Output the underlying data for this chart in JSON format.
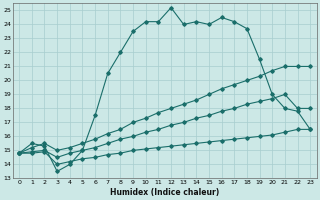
{
  "xlabel": "Humidex (Indice chaleur)",
  "bg_color": "#cce8e6",
  "grid_color": "#a8cece",
  "line_color": "#1a6e6a",
  "xlim": [
    -0.5,
    23.5
  ],
  "ylim": [
    13,
    25.5
  ],
  "xticks": [
    0,
    1,
    2,
    3,
    4,
    5,
    6,
    7,
    8,
    9,
    10,
    11,
    12,
    13,
    14,
    15,
    16,
    17,
    18,
    19,
    20,
    21,
    22,
    23
  ],
  "yticks": [
    13,
    14,
    15,
    16,
    17,
    18,
    19,
    20,
    21,
    22,
    23,
    24,
    25
  ],
  "curve1_x": [
    0,
    1,
    2,
    3,
    4,
    5,
    6,
    7,
    8,
    9,
    10,
    11,
    12,
    13,
    14,
    15,
    16,
    17,
    18,
    19,
    20,
    21,
    22,
    23
  ],
  "curve1_y": [
    14.8,
    15.5,
    15.3,
    13.5,
    14.0,
    15.0,
    17.5,
    20.5,
    22.0,
    23.5,
    24.2,
    24.2,
    25.2,
    24.0,
    24.2,
    24.0,
    24.5,
    24.2,
    23.7,
    21.5,
    19.0,
    18.0,
    17.8,
    16.5
  ],
  "curve2_x": [
    0,
    1,
    2,
    3,
    4,
    5,
    6,
    7,
    8,
    9,
    10,
    11,
    12,
    13,
    14,
    15,
    16,
    17,
    18,
    19,
    20,
    21,
    22,
    23
  ],
  "curve2_y": [
    14.8,
    15.2,
    15.5,
    15.0,
    15.2,
    15.5,
    15.8,
    16.2,
    16.5,
    17.0,
    17.3,
    17.7,
    18.0,
    18.3,
    18.6,
    19.0,
    19.4,
    19.7,
    20.0,
    20.3,
    20.7,
    21.0,
    21.0,
    21.0
  ],
  "curve3_x": [
    0,
    1,
    2,
    3,
    4,
    5,
    6,
    7,
    8,
    9,
    10,
    11,
    12,
    13,
    14,
    15,
    16,
    17,
    18,
    19,
    20,
    21,
    22,
    23
  ],
  "curve3_y": [
    14.8,
    14.9,
    15.0,
    14.5,
    14.8,
    15.0,
    15.2,
    15.5,
    15.8,
    16.0,
    16.3,
    16.5,
    16.8,
    17.0,
    17.3,
    17.5,
    17.8,
    18.0,
    18.3,
    18.5,
    18.7,
    19.0,
    18.0,
    18.0
  ],
  "curve4_x": [
    0,
    1,
    2,
    3,
    4,
    5,
    6,
    7,
    8,
    9,
    10,
    11,
    12,
    13,
    14,
    15,
    16,
    17,
    18,
    19,
    20,
    21,
    22,
    23
  ],
  "curve4_y": [
    14.8,
    14.8,
    14.9,
    14.0,
    14.2,
    14.4,
    14.5,
    14.7,
    14.8,
    15.0,
    15.1,
    15.2,
    15.3,
    15.4,
    15.5,
    15.6,
    15.7,
    15.8,
    15.9,
    16.0,
    16.1,
    16.3,
    16.5,
    16.5
  ]
}
